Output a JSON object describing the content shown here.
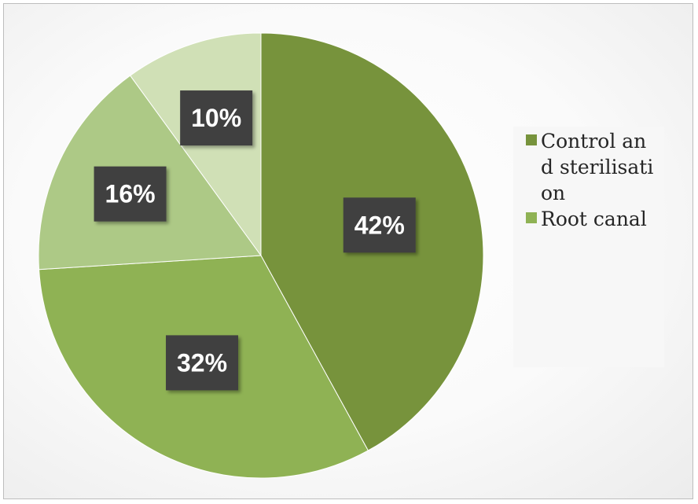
{
  "chart_data": {
    "type": "pie",
    "slices": [
      {
        "label": "Control and sterilisation",
        "value": 42,
        "display": "42%",
        "color": "#77933c"
      },
      {
        "label": "Root canal",
        "value": 32,
        "display": "32%",
        "color": "#8fb254"
      },
      {
        "label": "",
        "value": 16,
        "display": "16%",
        "color": "#adc986"
      },
      {
        "label": "",
        "value": 10,
        "display": "10%",
        "color": "#d0e0b6"
      }
    ],
    "legend": {
      "position": "right",
      "entries": [
        {
          "label": "Control and sterilisation",
          "color": "#77933c"
        },
        {
          "label": "Root canal",
          "color": "#8fb254"
        }
      ]
    },
    "start_angle_deg": 0,
    "direction": "clockwise"
  }
}
